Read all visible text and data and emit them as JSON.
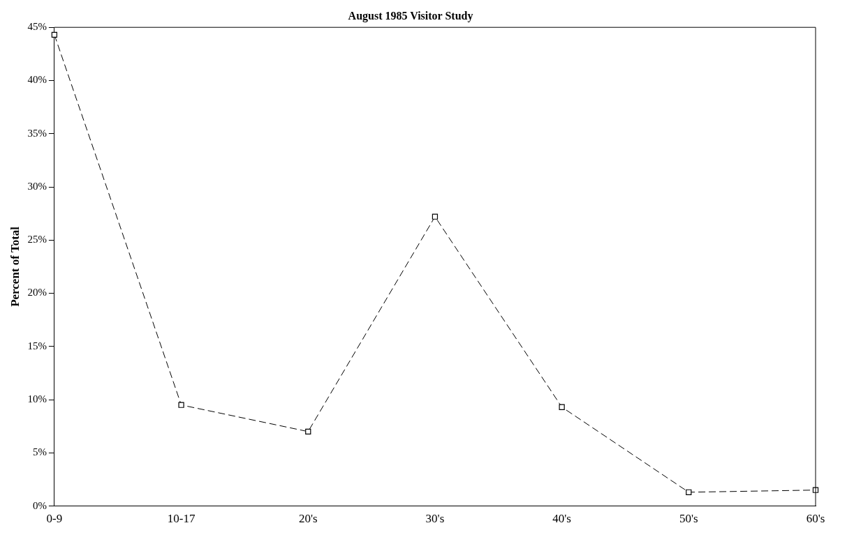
{
  "chart_data": {
    "type": "line",
    "title": "August 1985 Visitor Study",
    "ylabel": "Percent of Total",
    "categories": [
      "0-9",
      "10-17",
      "20's",
      "30's",
      "40's",
      "50's",
      "60's"
    ],
    "series": [
      {
        "color": "#000000",
        "values": [
          44.3,
          9.5,
          7,
          27.2,
          9.3,
          1.3,
          1.5
        ]
      }
    ],
    "ylim": [
      0,
      45
    ],
    "yticks": [
      {
        "value": 0,
        "label": "0%"
      },
      {
        "value": 5,
        "label": "5%"
      },
      {
        "value": 10,
        "label": "10%"
      },
      {
        "value": 15,
        "label": "15%"
      },
      {
        "value": 20,
        "label": "20%"
      },
      {
        "value": 25,
        "label": "25%"
      },
      {
        "value": 30,
        "label": "30%"
      },
      {
        "value": 35,
        "label": "35%"
      },
      {
        "value": 40,
        "label": "40%"
      },
      {
        "value": 45,
        "label": "45%"
      }
    ],
    "grid": false,
    "legend": false,
    "marker": "square",
    "line_style": "dashed"
  }
}
